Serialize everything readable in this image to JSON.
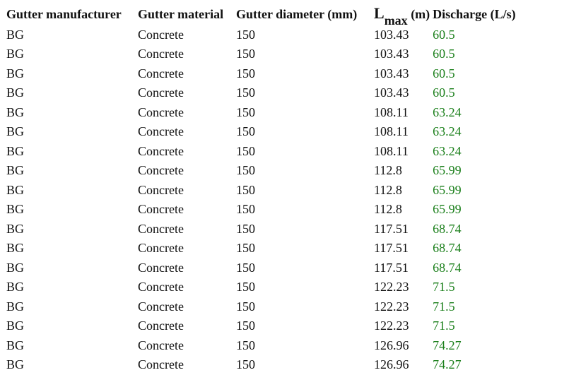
{
  "table": {
    "headers": {
      "manufacturer": "Gutter manufacturer",
      "material": "Gutter material",
      "diameter": "Gutter diameter (mm)",
      "lmax_main": "L",
      "lmax_sub": "max",
      "lmax_unit": " (m)",
      "discharge": "Discharge (L/s)"
    },
    "colors": {
      "discharge_text": "#1a7f1a"
    },
    "rows": [
      {
        "manufacturer": "BG",
        "material": "Concrete",
        "diameter": "150",
        "lmax": "103.43",
        "discharge": "60.5"
      },
      {
        "manufacturer": "BG",
        "material": "Concrete",
        "diameter": "150",
        "lmax": "103.43",
        "discharge": "60.5"
      },
      {
        "manufacturer": "BG",
        "material": "Concrete",
        "diameter": "150",
        "lmax": "103.43",
        "discharge": "60.5"
      },
      {
        "manufacturer": "BG",
        "material": "Concrete",
        "diameter": "150",
        "lmax": "103.43",
        "discharge": "60.5"
      },
      {
        "manufacturer": "BG",
        "material": "Concrete",
        "diameter": "150",
        "lmax": "108.11",
        "discharge": "63.24"
      },
      {
        "manufacturer": "BG",
        "material": "Concrete",
        "diameter": "150",
        "lmax": "108.11",
        "discharge": "63.24"
      },
      {
        "manufacturer": "BG",
        "material": "Concrete",
        "diameter": "150",
        "lmax": "108.11",
        "discharge": "63.24"
      },
      {
        "manufacturer": "BG",
        "material": "Concrete",
        "diameter": "150",
        "lmax": "112.8",
        "discharge": "65.99"
      },
      {
        "manufacturer": "BG",
        "material": "Concrete",
        "diameter": "150",
        "lmax": "112.8",
        "discharge": "65.99"
      },
      {
        "manufacturer": "BG",
        "material": "Concrete",
        "diameter": "150",
        "lmax": "112.8",
        "discharge": "65.99"
      },
      {
        "manufacturer": "BG",
        "material": "Concrete",
        "diameter": "150",
        "lmax": "117.51",
        "discharge": "68.74"
      },
      {
        "manufacturer": "BG",
        "material": "Concrete",
        "diameter": "150",
        "lmax": "117.51",
        "discharge": "68.74"
      },
      {
        "manufacturer": "BG",
        "material": "Concrete",
        "diameter": "150",
        "lmax": "117.51",
        "discharge": "68.74"
      },
      {
        "manufacturer": "BG",
        "material": "Concrete",
        "diameter": "150",
        "lmax": "122.23",
        "discharge": "71.5"
      },
      {
        "manufacturer": "BG",
        "material": "Concrete",
        "diameter": "150",
        "lmax": "122.23",
        "discharge": "71.5"
      },
      {
        "manufacturer": "BG",
        "material": "Concrete",
        "diameter": "150",
        "lmax": "122.23",
        "discharge": "71.5"
      },
      {
        "manufacturer": "BG",
        "material": "Concrete",
        "diameter": "150",
        "lmax": "126.96",
        "discharge": "74.27"
      },
      {
        "manufacturer": "BG",
        "material": "Concrete",
        "diameter": "150",
        "lmax": "126.96",
        "discharge": "74.27"
      }
    ]
  }
}
